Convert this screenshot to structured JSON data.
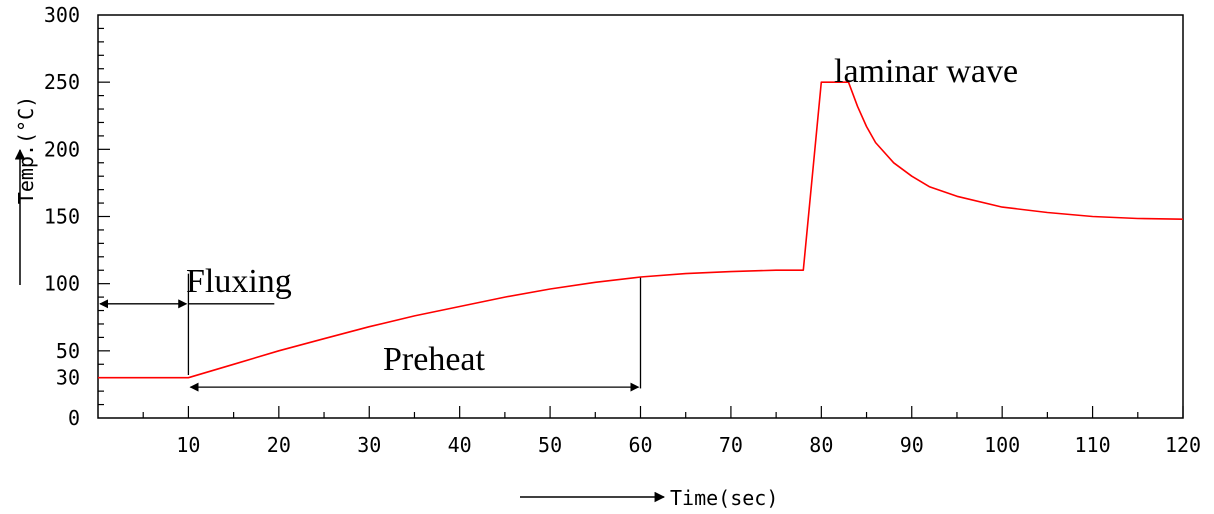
{
  "chart_data": {
    "type": "line",
    "xlabel": "Time(sec)",
    "ylabel": "Temp.(°C)",
    "xlim": [
      0,
      120
    ],
    "ylim": [
      0,
      300
    ],
    "x_ticks": [
      10,
      20,
      30,
      40,
      50,
      60,
      70,
      80,
      90,
      100,
      110,
      120
    ],
    "y_ticks": [
      0,
      30,
      50,
      100,
      150,
      200,
      250,
      300
    ],
    "grid": false,
    "series": [
      {
        "color": "#ff0000",
        "x": [
          0,
          10,
          15,
          20,
          25,
          30,
          35,
          40,
          45,
          50,
          55,
          60,
          65,
          70,
          75,
          78,
          80,
          83,
          84,
          85,
          86,
          88,
          90,
          92,
          95,
          100,
          105,
          110,
          115,
          120
        ],
        "y": [
          30,
          30,
          40,
          50,
          59,
          68,
          76,
          83,
          90,
          96,
          101,
          105,
          107.5,
          109,
          110,
          110,
          250,
          250,
          232,
          217,
          205,
          190,
          180,
          172,
          165,
          157,
          153,
          150,
          148.5,
          148
        ]
      }
    ],
    "annotations": [
      {
        "text": "Fluxing",
        "x_start": 0,
        "x_end": 10,
        "x_text": 10,
        "y": 100
      },
      {
        "text": "Preheat",
        "x_start": 10,
        "x_end": 60,
        "x_text": 32,
        "y": 40
      },
      {
        "text": "laminar wave",
        "x_text": 82,
        "y": 255
      }
    ],
    "colors": {
      "axis": "#000000",
      "curve": "#ff0000",
      "background": "#ffffff"
    }
  }
}
